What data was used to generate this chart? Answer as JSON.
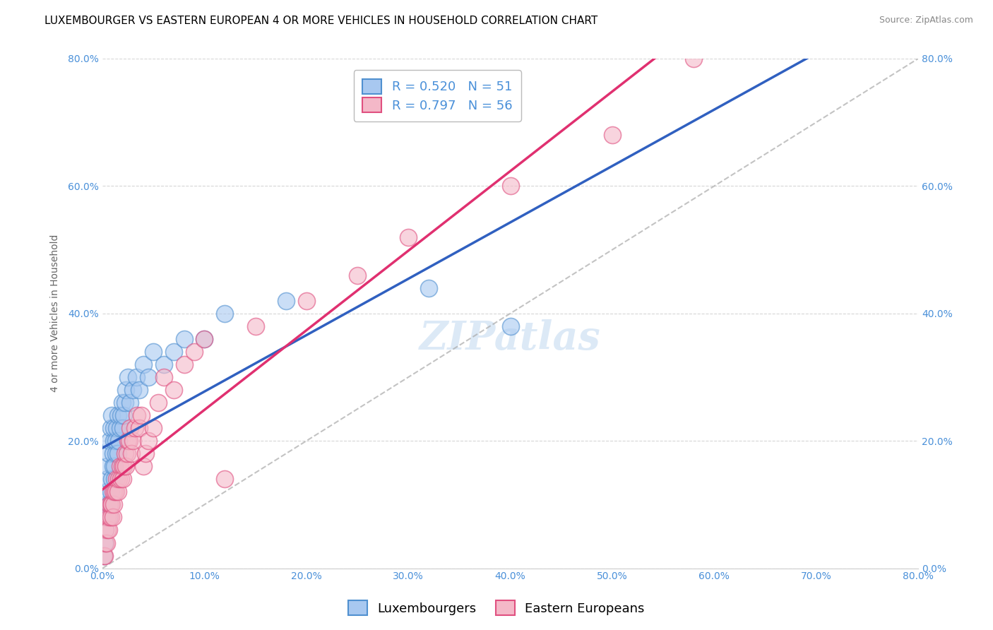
{
  "title": "LUXEMBOURGER VS EASTERN EUROPEAN 4 OR MORE VEHICLES IN HOUSEHOLD CORRELATION CHART",
  "source": "Source: ZipAtlas.com",
  "ylabel": "4 or more Vehicles in Household",
  "xlim": [
    0.0,
    0.8
  ],
  "ylim": [
    0.0,
    0.8
  ],
  "x_tick_labels": [
    "0.0%",
    "10.0%",
    "20.0%",
    "30.0%",
    "40.0%",
    "50.0%",
    "60.0%",
    "70.0%",
    "80.0%"
  ],
  "y_tick_labels": [
    "0.0%",
    "20.0%",
    "40.0%",
    "60.0%",
    "80.0%"
  ],
  "y_tick_vals": [
    0.0,
    0.2,
    0.4,
    0.6,
    0.8
  ],
  "x_tick_vals": [
    0.0,
    0.1,
    0.2,
    0.3,
    0.4,
    0.5,
    0.6,
    0.7,
    0.8
  ],
  "blue_R": 0.52,
  "blue_N": 51,
  "pink_R": 0.797,
  "pink_N": 56,
  "blue_color": "#A8C8F0",
  "pink_color": "#F4B8C8",
  "blue_edge_color": "#5090D0",
  "pink_edge_color": "#E05080",
  "blue_line_color": "#3060C0",
  "pink_line_color": "#E03070",
  "diagonal_color": "#AAAAAA",
  "watermark": "ZIPatlas",
  "blue_scatter_x": [
    0.001,
    0.002,
    0.003,
    0.003,
    0.004,
    0.004,
    0.005,
    0.005,
    0.006,
    0.006,
    0.007,
    0.007,
    0.008,
    0.008,
    0.009,
    0.009,
    0.01,
    0.01,
    0.011,
    0.011,
    0.012,
    0.012,
    0.013,
    0.013,
    0.014,
    0.015,
    0.015,
    0.016,
    0.017,
    0.018,
    0.019,
    0.02,
    0.021,
    0.022,
    0.023,
    0.025,
    0.027,
    0.03,
    0.033,
    0.036,
    0.04,
    0.045,
    0.05,
    0.06,
    0.07,
    0.08,
    0.1,
    0.12,
    0.18,
    0.32,
    0.4
  ],
  "blue_scatter_y": [
    0.02,
    0.04,
    0.06,
    0.08,
    0.1,
    0.12,
    0.14,
    0.16,
    0.08,
    0.18,
    0.1,
    0.2,
    0.12,
    0.22,
    0.14,
    0.24,
    0.16,
    0.18,
    0.2,
    0.22,
    0.14,
    0.16,
    0.18,
    0.2,
    0.22,
    0.18,
    0.24,
    0.2,
    0.22,
    0.24,
    0.26,
    0.22,
    0.24,
    0.26,
    0.28,
    0.3,
    0.26,
    0.28,
    0.3,
    0.28,
    0.32,
    0.3,
    0.34,
    0.32,
    0.34,
    0.36,
    0.36,
    0.4,
    0.42,
    0.44,
    0.38
  ],
  "pink_scatter_x": [
    0.001,
    0.002,
    0.003,
    0.003,
    0.004,
    0.005,
    0.005,
    0.006,
    0.007,
    0.007,
    0.008,
    0.008,
    0.009,
    0.01,
    0.01,
    0.011,
    0.012,
    0.013,
    0.014,
    0.015,
    0.016,
    0.017,
    0.018,
    0.019,
    0.02,
    0.021,
    0.022,
    0.023,
    0.024,
    0.025,
    0.026,
    0.027,
    0.028,
    0.03,
    0.032,
    0.034,
    0.036,
    0.038,
    0.04,
    0.042,
    0.045,
    0.05,
    0.055,
    0.06,
    0.07,
    0.08,
    0.09,
    0.1,
    0.12,
    0.15,
    0.2,
    0.25,
    0.3,
    0.4,
    0.5,
    0.58
  ],
  "pink_scatter_y": [
    0.02,
    0.02,
    0.04,
    0.06,
    0.04,
    0.06,
    0.08,
    0.06,
    0.08,
    0.1,
    0.08,
    0.1,
    0.1,
    0.08,
    0.12,
    0.1,
    0.12,
    0.12,
    0.14,
    0.12,
    0.14,
    0.16,
    0.14,
    0.16,
    0.14,
    0.16,
    0.18,
    0.16,
    0.18,
    0.2,
    0.2,
    0.22,
    0.18,
    0.2,
    0.22,
    0.24,
    0.22,
    0.24,
    0.16,
    0.18,
    0.2,
    0.22,
    0.26,
    0.3,
    0.28,
    0.32,
    0.34,
    0.36,
    0.14,
    0.38,
    0.42,
    0.46,
    0.52,
    0.6,
    0.68,
    0.8
  ],
  "title_fontsize": 11,
  "axis_label_fontsize": 10,
  "tick_fontsize": 10,
  "legend_fontsize": 13,
  "watermark_fontsize": 40,
  "source_fontsize": 9
}
